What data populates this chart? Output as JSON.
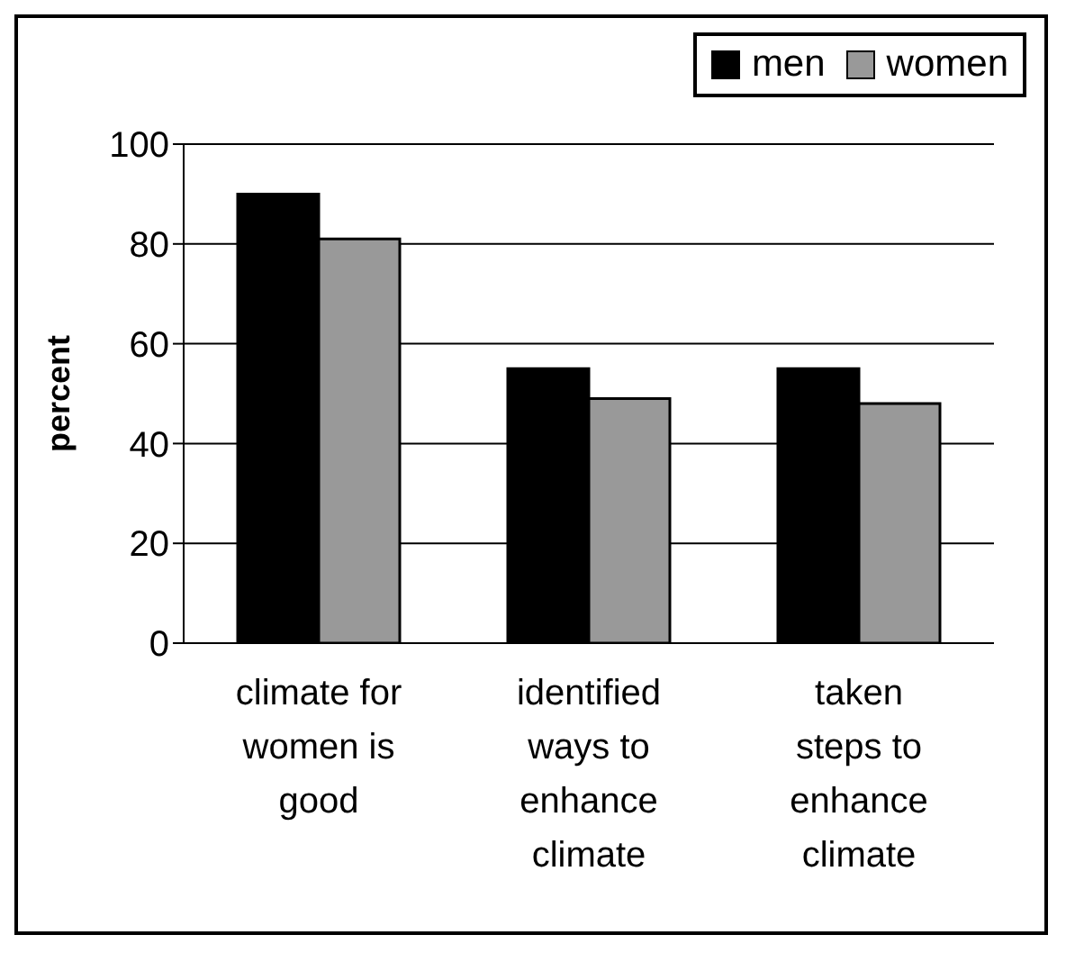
{
  "chart_data": {
    "type": "bar",
    "ylabel": "percent",
    "categories": [
      "climate for\nwomen is\ngood",
      "identified\nways to\nenhance\nclimate",
      "taken\nsteps to\nenhance\nclimate"
    ],
    "series": [
      {
        "name": "men",
        "color": "#000000",
        "values": [
          90,
          55,
          55
        ]
      },
      {
        "name": "women",
        "color": "#999999",
        "values": [
          81,
          49,
          48
        ]
      }
    ],
    "ylim": [
      0,
      100
    ],
    "yticks": [
      0,
      20,
      40,
      60,
      80,
      100
    ],
    "grid": "y",
    "legend": "top right"
  }
}
